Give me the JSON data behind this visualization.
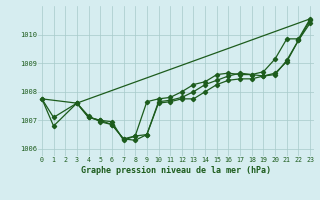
{
  "title": "Graphe pression niveau de la mer (hPa)",
  "hours": [
    0,
    1,
    2,
    3,
    4,
    5,
    6,
    7,
    8,
    9,
    10,
    11,
    12,
    13,
    14,
    15,
    16,
    17,
    18,
    19,
    20,
    21,
    22,
    23
  ],
  "upper_line_x": [
    0,
    3,
    23
  ],
  "upper_line_y": [
    1007.75,
    1007.6,
    1010.55
  ],
  "line_a_x": [
    0,
    1,
    3,
    4,
    5,
    6,
    7,
    8,
    9,
    10,
    11,
    12,
    13,
    14,
    15,
    16,
    17,
    18,
    19,
    20,
    21,
    22,
    23
  ],
  "line_a_y": [
    1007.75,
    1006.8,
    1007.6,
    1007.1,
    1007.0,
    1006.85,
    1006.35,
    1006.3,
    1006.5,
    1007.65,
    1007.7,
    1007.8,
    1008.0,
    1008.25,
    1008.4,
    1008.55,
    1008.65,
    1008.6,
    1008.55,
    1008.65,
    1009.05,
    1009.8,
    1010.5
  ],
  "line_b_x": [
    0,
    1,
    3,
    4,
    5,
    6,
    7,
    8,
    9,
    10,
    11,
    12,
    13,
    14,
    15,
    16,
    17,
    18,
    19,
    20,
    21,
    22,
    23
  ],
  "line_b_y": [
    1007.75,
    1007.1,
    1007.6,
    1007.1,
    1007.0,
    1006.95,
    1006.3,
    1006.45,
    1006.5,
    1007.6,
    1007.65,
    1007.75,
    1007.75,
    1008.0,
    1008.25,
    1008.4,
    1008.45,
    1008.45,
    1008.55,
    1008.6,
    1009.1,
    1009.8,
    1010.4
  ],
  "line_c_x": [
    3,
    4,
    5,
    6,
    7,
    8,
    9,
    10,
    11,
    12,
    13,
    14,
    15,
    16,
    17,
    18,
    19,
    20,
    21,
    22,
    23
  ],
  "line_c_y": [
    1007.6,
    1007.15,
    1006.95,
    1006.85,
    1006.35,
    1006.45,
    1007.65,
    1007.75,
    1007.8,
    1008.0,
    1008.25,
    1008.35,
    1008.6,
    1008.65,
    1008.6,
    1008.6,
    1008.7,
    1009.15,
    1009.85,
    1009.85,
    1010.55
  ],
  "ylim": [
    1005.75,
    1011.0
  ],
  "yticks": [
    1006,
    1007,
    1008,
    1009,
    1010
  ],
  "xlim": [
    -0.3,
    23.3
  ],
  "bg_color": "#d6edf0",
  "grid_color": "#a8caca",
  "line_color": "#1d5c1d",
  "title_color": "#1d5c1d",
  "title_fontsize": 6.0,
  "tick_fontsize": 4.8
}
